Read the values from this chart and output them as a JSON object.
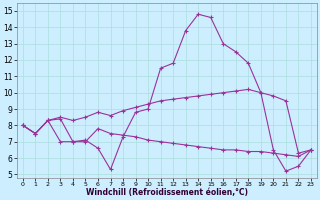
{
  "xlabel": "Windchill (Refroidissement éolien,°C)",
  "background_color": "#cceeff",
  "line_color": "#993399",
  "xlim": [
    -0.5,
    23.5
  ],
  "ylim": [
    4.8,
    15.5
  ],
  "xticks": [
    0,
    1,
    2,
    3,
    4,
    5,
    6,
    7,
    8,
    9,
    10,
    11,
    12,
    13,
    14,
    15,
    16,
    17,
    18,
    19,
    20,
    21,
    22,
    23
  ],
  "yticks": [
    5,
    6,
    7,
    8,
    9,
    10,
    11,
    12,
    13,
    14,
    15
  ],
  "line1_x": [
    0,
    1,
    2,
    3,
    4,
    5,
    6,
    7,
    8,
    9,
    10,
    11,
    12,
    13,
    14,
    15,
    16,
    17,
    18,
    19,
    20,
    21,
    22,
    23
  ],
  "line1_y": [
    8.0,
    7.5,
    8.3,
    8.4,
    7.0,
    7.1,
    6.6,
    5.3,
    7.3,
    8.8,
    9.0,
    11.5,
    11.8,
    13.8,
    14.8,
    14.6,
    13.0,
    12.5,
    11.8,
    10.0,
    6.5,
    5.2,
    5.5,
    6.5
  ],
  "line2_x": [
    0,
    1,
    2,
    3,
    4,
    5,
    6,
    7,
    8,
    9,
    10,
    11,
    12,
    13,
    14,
    15,
    16,
    17,
    18,
    19,
    20,
    21,
    22,
    23
  ],
  "line2_y": [
    8.0,
    7.5,
    8.3,
    8.5,
    8.3,
    8.5,
    8.8,
    8.6,
    8.9,
    9.1,
    9.3,
    9.5,
    9.6,
    9.7,
    9.8,
    9.9,
    10.0,
    10.1,
    10.2,
    10.0,
    9.8,
    9.5,
    6.3,
    6.5
  ],
  "line3_x": [
    0,
    1,
    2,
    3,
    4,
    5,
    6,
    7,
    8,
    9,
    10,
    11,
    12,
    13,
    14,
    15,
    16,
    17,
    18,
    19,
    20,
    21,
    22,
    23
  ],
  "line3_y": [
    8.0,
    7.5,
    8.3,
    7.0,
    7.0,
    7.0,
    7.8,
    7.5,
    7.4,
    7.3,
    7.1,
    7.0,
    6.9,
    6.8,
    6.7,
    6.6,
    6.5,
    6.5,
    6.4,
    6.4,
    6.3,
    6.2,
    6.1,
    6.5
  ]
}
